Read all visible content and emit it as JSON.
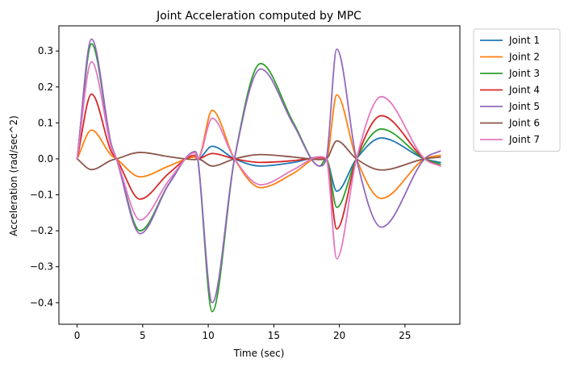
{
  "chart_data": {
    "type": "line",
    "title": "Joint Acceleration computed by MPC",
    "xlabel": "Time (sec)",
    "ylabel": "Acceleration  (rad/sec^2)",
    "xlim": [
      -1.39,
      29.19
    ],
    "ylim": [
      -0.46,
      0.37
    ],
    "xticks": [
      0,
      5,
      10,
      15,
      20,
      25
    ],
    "yticks": [
      -0.4,
      -0.3,
      -0.2,
      -0.1,
      0.0,
      0.1,
      0.2,
      0.3
    ],
    "xtick_labels": [
      "0",
      "5",
      "10",
      "15",
      "20",
      "25"
    ],
    "ytick_labels": [
      "−0.4",
      "−0.3",
      "−0.2",
      "−0.1",
      "0.0",
      "0.1",
      "0.2",
      "0.3"
    ],
    "grid": false,
    "legend_position": "outside-top-right",
    "series": [
      {
        "name": "Joint 1",
        "color": "#1f77b4",
        "points": [
          [
            0,
            0
          ],
          [
            1.1,
            0.32
          ],
          [
            2.6,
            0.04
          ],
          [
            3.0,
            0
          ],
          [
            4.8,
            -0.2
          ],
          [
            7.0,
            -0.07
          ],
          [
            9.0,
            0.02
          ],
          [
            9.2,
            0
          ],
          [
            10.3,
            0.035
          ],
          [
            12.0,
            0
          ],
          [
            14.0,
            -0.02
          ],
          [
            16.5,
            -0.01
          ],
          [
            18.5,
            0.005
          ],
          [
            19.0,
            0
          ],
          [
            19.8,
            -0.09
          ],
          [
            21.3,
            0
          ],
          [
            23.2,
            0.058
          ],
          [
            26.5,
            0
          ],
          [
            27.7,
            -0.01
          ]
        ]
      },
      {
        "name": "Joint 2",
        "color": "#ff7f0e",
        "points": [
          [
            0,
            0
          ],
          [
            1.1,
            0.08
          ],
          [
            2.6,
            0.01
          ],
          [
            3.0,
            0
          ],
          [
            4.8,
            -0.05
          ],
          [
            7.0,
            -0.02
          ],
          [
            9.0,
            0.005
          ],
          [
            9.2,
            0
          ],
          [
            10.3,
            0.135
          ],
          [
            12.0,
            0
          ],
          [
            14.0,
            -0.08
          ],
          [
            16.5,
            -0.04
          ],
          [
            18.5,
            0.005
          ],
          [
            19.0,
            0
          ],
          [
            19.8,
            0.178
          ],
          [
            21.3,
            0
          ],
          [
            23.2,
            -0.11
          ],
          [
            26.5,
            0
          ],
          [
            27.7,
            0.01
          ]
        ]
      },
      {
        "name": "Joint 3",
        "color": "#2ca02c",
        "points": [
          [
            0,
            0
          ],
          [
            1.1,
            0.32
          ],
          [
            2.6,
            0.04
          ],
          [
            3.0,
            0
          ],
          [
            4.8,
            -0.2
          ],
          [
            7.0,
            -0.07
          ],
          [
            9.0,
            0.02
          ],
          [
            9.2,
            0
          ],
          [
            10.3,
            -0.425
          ],
          [
            12.0,
            0
          ],
          [
            14.0,
            0.265
          ],
          [
            16.5,
            0.1
          ],
          [
            18.5,
            -0.02
          ],
          [
            19.0,
            0
          ],
          [
            19.8,
            -0.135
          ],
          [
            21.3,
            0
          ],
          [
            23.2,
            0.083
          ],
          [
            26.5,
            0
          ],
          [
            27.7,
            -0.015
          ]
        ]
      },
      {
        "name": "Joint 4",
        "color": "#d62728",
        "points": [
          [
            0,
            0
          ],
          [
            1.1,
            0.18
          ],
          [
            2.6,
            0.02
          ],
          [
            3.0,
            0
          ],
          [
            4.8,
            -0.112
          ],
          [
            7.0,
            -0.04
          ],
          [
            9.0,
            0.01
          ],
          [
            9.2,
            0
          ],
          [
            10.3,
            0.015
          ],
          [
            12.0,
            0
          ],
          [
            14.0,
            -0.01
          ],
          [
            16.5,
            -0.005
          ],
          [
            18.5,
            0.003
          ],
          [
            19.0,
            0
          ],
          [
            19.8,
            -0.195
          ],
          [
            21.3,
            0
          ],
          [
            23.2,
            0.12
          ],
          [
            26.5,
            0
          ],
          [
            27.7,
            -0.02
          ]
        ]
      },
      {
        "name": "Joint 5",
        "color": "#9467bd",
        "points": [
          [
            0,
            0
          ],
          [
            1.1,
            0.333
          ],
          [
            2.6,
            0.04
          ],
          [
            3.0,
            0
          ],
          [
            4.8,
            -0.208
          ],
          [
            7.0,
            -0.07
          ],
          [
            9.0,
            0.02
          ],
          [
            9.2,
            0
          ],
          [
            10.3,
            -0.4
          ],
          [
            12.0,
            0
          ],
          [
            14.0,
            0.25
          ],
          [
            16.5,
            0.095
          ],
          [
            18.5,
            -0.02
          ],
          [
            19.0,
            0
          ],
          [
            19.8,
            0.305
          ],
          [
            21.3,
            0
          ],
          [
            23.2,
            -0.19
          ],
          [
            26.5,
            0
          ],
          [
            27.7,
            0.022
          ]
        ]
      },
      {
        "name": "Joint 6",
        "color": "#8c564b",
        "points": [
          [
            0,
            0
          ],
          [
            1.1,
            -0.03
          ],
          [
            2.6,
            -0.004
          ],
          [
            3.0,
            0
          ],
          [
            4.8,
            0.018
          ],
          [
            7.0,
            0.006
          ],
          [
            9.0,
            -0.002
          ],
          [
            9.2,
            0
          ],
          [
            10.3,
            -0.02
          ],
          [
            12.0,
            0
          ],
          [
            14.0,
            0.012
          ],
          [
            16.5,
            0.005
          ],
          [
            18.5,
            -0.002
          ],
          [
            19.0,
            0
          ],
          [
            19.8,
            0.05
          ],
          [
            21.3,
            0
          ],
          [
            23.2,
            -0.031
          ],
          [
            26.5,
            0
          ],
          [
            27.7,
            0.005
          ]
        ]
      },
      {
        "name": "Joint 7",
        "color": "#e377c2",
        "points": [
          [
            0,
            0
          ],
          [
            1.1,
            0.27
          ],
          [
            2.6,
            0.033
          ],
          [
            3.0,
            0
          ],
          [
            4.8,
            -0.17
          ],
          [
            7.0,
            -0.06
          ],
          [
            9.0,
            0.017
          ],
          [
            9.2,
            0
          ],
          [
            10.3,
            0.113
          ],
          [
            12.0,
            0
          ],
          [
            14.0,
            -0.072
          ],
          [
            16.5,
            -0.03
          ],
          [
            18.5,
            0.006
          ],
          [
            19.0,
            0
          ],
          [
            19.8,
            -0.278
          ],
          [
            21.3,
            0
          ],
          [
            23.2,
            0.173
          ],
          [
            26.5,
            0
          ],
          [
            27.7,
            -0.02
          ]
        ]
      }
    ]
  }
}
